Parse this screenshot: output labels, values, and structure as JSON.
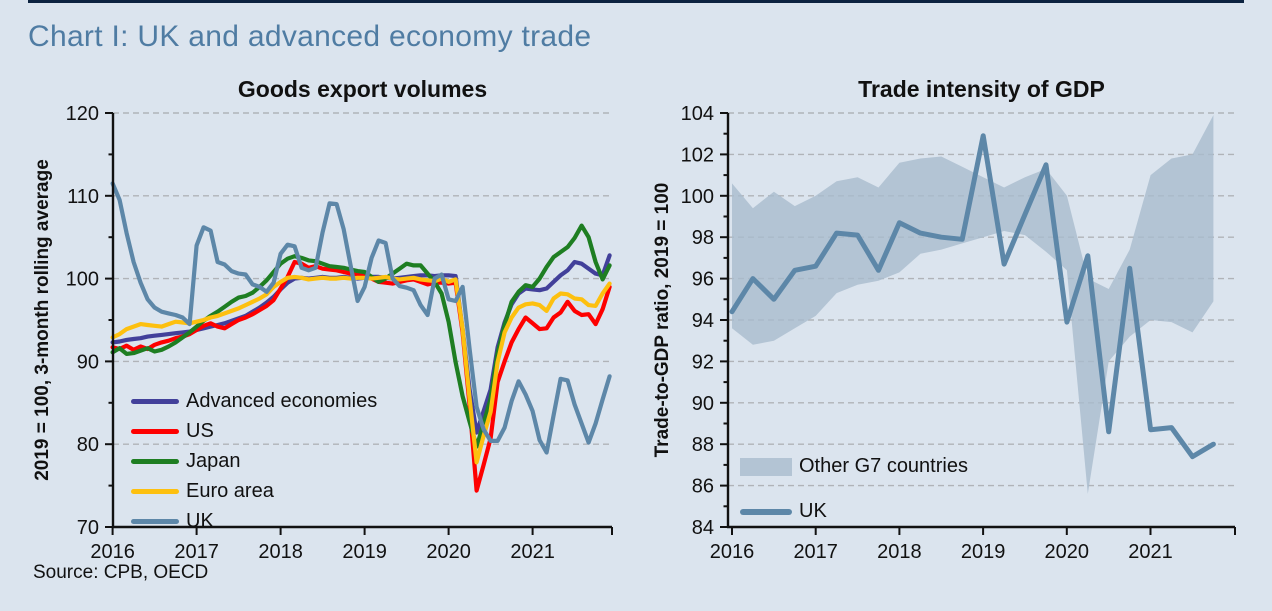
{
  "page": {
    "title": "Chart I: UK and advanced economy trade",
    "source": "Source: CPB, OECD"
  },
  "colors": {
    "background": "#dbe4ee",
    "title": "#4f7ca3",
    "top_rule": "#0c2340",
    "axis": "#111111",
    "grid": "#b0b3b8",
    "band": "#a9bccd",
    "uk": "#5d87a8",
    "advanced": "#42409a",
    "us": "#fe0000",
    "japan": "#1e7e22",
    "euro": "#fdc00f"
  },
  "chart_data": [
    {
      "type": "line",
      "title": "Goods export volumes",
      "ylabel": "2019 = 100, 3-month rolling average",
      "ylim": [
        70,
        120
      ],
      "yticks": [
        70,
        80,
        90,
        100,
        110,
        120
      ],
      "y_minor_step": 5,
      "grid": "dashed horizontal",
      "legend_position": "inside bottom-left",
      "x_freq": "monthly",
      "x_range": "Jan 2016 - Dec 2021",
      "xticklabels": [
        "2016",
        "2017",
        "2018",
        "2019",
        "2020",
        "2021"
      ],
      "series": [
        {
          "name": "Advanced economies",
          "color": "advanced",
          "values": [
            92.3,
            92.4,
            92.6,
            92.7,
            92.8,
            93.0,
            93.1,
            93.2,
            93.3,
            93.4,
            93.5,
            93.6,
            93.8,
            94.0,
            94.2,
            94.4,
            94.6,
            94.9,
            95.2,
            95.5,
            96.0,
            96.5,
            97.1,
            97.8,
            98.7,
            99.5,
            100.0,
            100.1,
            100.0,
            100.1,
            100.2,
            100.1,
            100.1,
            100.2,
            100.1,
            100.0,
            100.1,
            100.2,
            100.2,
            100.1,
            100.0,
            100.1,
            100.2,
            100.3,
            100.4,
            100.4,
            100.3,
            100.4,
            100.4,
            100.3,
            93.9,
            86.6,
            81.4,
            84.0,
            86.6,
            91.7,
            94.7,
            96.9,
            98.2,
            98.8,
            98.7,
            98.6,
            98.8,
            99.6,
            100.4,
            101.0,
            102.0,
            101.8,
            101.2,
            100.6,
            100.4,
            102.8
          ]
        },
        {
          "name": "US",
          "color": "us",
          "values": [
            91.7,
            91.5,
            91.9,
            91.4,
            91.8,
            91.5,
            92.0,
            92.3,
            92.5,
            92.8,
            93.0,
            93.3,
            93.8,
            94.3,
            94.6,
            94.2,
            94.0,
            94.5,
            95.0,
            95.3,
            95.7,
            96.2,
            96.7,
            97.4,
            98.8,
            100.2,
            102.0,
            101.8,
            101.3,
            101.5,
            101.2,
            101.1,
            101.0,
            100.8,
            100.6,
            100.5,
            100.3,
            100.0,
            99.6,
            99.5,
            99.4,
            99.6,
            99.8,
            99.9,
            99.6,
            99.3,
            99.5,
            99.5,
            99.4,
            99.5,
            93.5,
            84.7,
            74.4,
            77.5,
            80.7,
            87.5,
            90.0,
            92.3,
            93.9,
            95.3,
            94.6,
            93.9,
            94.0,
            95.3,
            95.9,
            97.2,
            96.1,
            95.6,
            95.7,
            94.5,
            96.3,
            99.0
          ]
        },
        {
          "name": "Japan",
          "color": "japan",
          "values": [
            91.1,
            91.6,
            90.9,
            91.0,
            91.3,
            91.6,
            91.2,
            91.4,
            91.8,
            92.3,
            92.9,
            93.5,
            94.2,
            94.9,
            95.5,
            96.0,
            96.6,
            97.2,
            97.7,
            97.9,
            98.3,
            99.0,
            99.8,
            100.8,
            101.8,
            102.4,
            102.7,
            102.5,
            102.2,
            102.1,
            101.8,
            101.5,
            101.4,
            101.3,
            101.1,
            100.9,
            100.8,
            100.2,
            99.6,
            100.0,
            100.6,
            101.2,
            101.8,
            101.6,
            101.6,
            100.6,
            99.6,
            98.2,
            94.8,
            89.9,
            85.8,
            82.7,
            79.7,
            82.5,
            85.5,
            91.0,
            94.4,
            97.2,
            98.4,
            99.2,
            99.0,
            100.0,
            101.4,
            102.6,
            103.2,
            103.8,
            104.9,
            106.4,
            105.0,
            102.0,
            99.9,
            101.6
          ]
        },
        {
          "name": "Euro area",
          "color": "euro",
          "values": [
            92.9,
            93.3,
            93.9,
            94.2,
            94.5,
            94.4,
            94.3,
            94.2,
            94.5,
            94.8,
            94.7,
            94.6,
            94.8,
            95.0,
            95.3,
            95.5,
            95.8,
            96.1,
            96.4,
            96.8,
            97.2,
            97.6,
            98.1,
            99.0,
            99.6,
            100.1,
            100.2,
            100.1,
            99.9,
            100.0,
            100.1,
            100.0,
            100.0,
            100.1,
            100.0,
            100.1,
            100.1,
            100.0,
            100.1,
            100.2,
            100.0,
            99.9,
            100.0,
            100.1,
            99.9,
            99.8,
            99.7,
            100.0,
            99.6,
            99.9,
            93.9,
            85.5,
            77.8,
            81.0,
            83.9,
            89.9,
            93.5,
            95.3,
            96.5,
            96.9,
            97.0,
            96.8,
            96.1,
            97.6,
            98.2,
            98.1,
            97.6,
            97.5,
            96.8,
            96.7,
            98.2,
            99.4
          ]
        },
        {
          "name": "UK",
          "color": "uk",
          "values": [
            111.5,
            109.5,
            105.5,
            102.0,
            99.5,
            97.5,
            96.5,
            96.0,
            95.8,
            95.6,
            95.3,
            94.5,
            104.0,
            106.2,
            105.8,
            102.0,
            101.7,
            100.9,
            100.6,
            100.5,
            99.3,
            99.0,
            98.4,
            99.5,
            103.0,
            104.1,
            103.9,
            101.3,
            101.0,
            101.3,
            105.6,
            109.1,
            109.0,
            106.0,
            101.6,
            97.3,
            99.0,
            102.5,
            104.6,
            104.3,
            100.0,
            99.1,
            98.9,
            98.6,
            96.8,
            95.6,
            100.0,
            100.5,
            97.5,
            97.3,
            99.0,
            91.5,
            84.5,
            81.8,
            80.4,
            80.4,
            82.0,
            85.2,
            87.6,
            86.0,
            84.0,
            80.5,
            79.0,
            83.5,
            87.9,
            87.7,
            84.8,
            82.5,
            80.2,
            82.5,
            85.4,
            88.2
          ]
        }
      ]
    },
    {
      "type": "line-with-band",
      "title": "Trade intensity of GDP",
      "ylabel": "Trade-to-GDP ratio, 2019 = 100",
      "ylim": [
        84,
        104
      ],
      "yticks": [
        84,
        86,
        88,
        90,
        92,
        94,
        96,
        98,
        100,
        102,
        104
      ],
      "y_minor_step": 1,
      "grid": "dashed horizontal",
      "legend_position": "inside bottom-left",
      "x_freq": "quarterly",
      "x_range": "2016 Q1 - 2021 Q4",
      "xticklabels": [
        "2016",
        "2017",
        "2018",
        "2019",
        "2020",
        "2021"
      ],
      "band": {
        "name": "Other G7 countries",
        "color": "band",
        "upper": [
          100.6,
          99.4,
          100.2,
          99.5,
          100.0,
          100.7,
          100.9,
          100.4,
          101.6,
          101.8,
          101.9,
          101.4,
          100.9,
          100.4,
          100.9,
          101.3,
          100.0,
          96.0,
          95.5,
          97.4,
          101.0,
          101.8,
          102.0,
          103.9
        ],
        "lower": [
          93.6,
          92.8,
          93.0,
          93.6,
          94.2,
          95.3,
          95.7,
          95.9,
          96.3,
          97.2,
          97.4,
          97.7,
          98.0,
          98.3,
          98.1,
          97.3,
          96.4,
          85.6,
          92.0,
          93.2,
          94.0,
          93.9,
          93.4,
          94.9
        ]
      },
      "series": [
        {
          "name": "UK",
          "color": "uk",
          "values": [
            94.4,
            96.0,
            95.0,
            96.4,
            96.6,
            98.2,
            98.1,
            96.4,
            98.7,
            98.2,
            98.0,
            97.9,
            102.9,
            96.7,
            99.1,
            101.5,
            93.9,
            97.1,
            88.6,
            96.5,
            88.7,
            88.8,
            87.4,
            88.0
          ]
        }
      ]
    }
  ]
}
